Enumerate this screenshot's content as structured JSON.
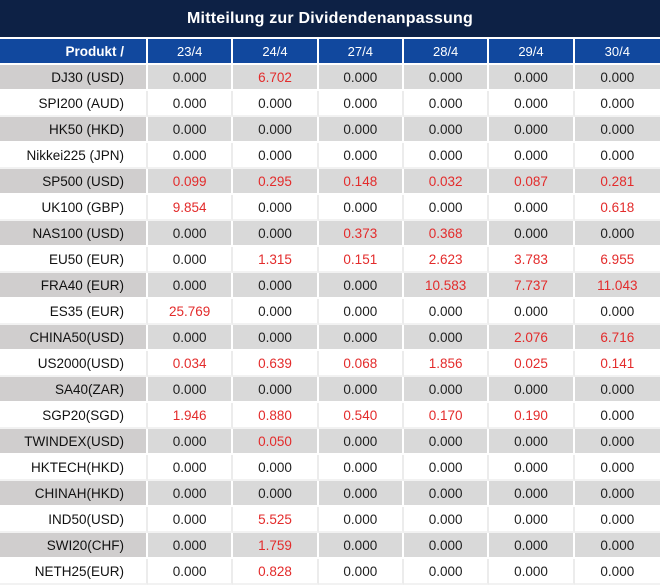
{
  "title": "Mitteilung zur Dividendenanpassung",
  "colors": {
    "title_bar_bg": "#0d2145",
    "header_bg": "#11489e",
    "header_text": "#ffffff",
    "row_gray": "#d9d9d9",
    "product_gray": "#d0cece",
    "row_white": "#ffffff",
    "value_zero": "#1f1f1f",
    "value_nonzero": "#e32b2b"
  },
  "table": {
    "product_header": "Produkt /",
    "date_columns": [
      "23/4",
      "24/4",
      "27/4",
      "28/4",
      "29/4",
      "30/4"
    ],
    "rows": [
      {
        "product": "DJ30 (USD)",
        "values": [
          "0.000",
          "6.702",
          "0.000",
          "0.000",
          "0.000",
          "0.000"
        ]
      },
      {
        "product": "SPI200 (AUD)",
        "values": [
          "0.000",
          "0.000",
          "0.000",
          "0.000",
          "0.000",
          "0.000"
        ]
      },
      {
        "product": "HK50 (HKD)",
        "values": [
          "0.000",
          "0.000",
          "0.000",
          "0.000",
          "0.000",
          "0.000"
        ]
      },
      {
        "product": "Nikkei225 (JPN)",
        "values": [
          "0.000",
          "0.000",
          "0.000",
          "0.000",
          "0.000",
          "0.000"
        ]
      },
      {
        "product": "SP500 (USD)",
        "values": [
          "0.099",
          "0.295",
          "0.148",
          "0.032",
          "0.087",
          "0.281"
        ]
      },
      {
        "product": "UK100 (GBP)",
        "values": [
          "9.854",
          "0.000",
          "0.000",
          "0.000",
          "0.000",
          "0.618"
        ]
      },
      {
        "product": "NAS100 (USD)",
        "values": [
          "0.000",
          "0.000",
          "0.373",
          "0.368",
          "0.000",
          "0.000"
        ]
      },
      {
        "product": "EU50 (EUR)",
        "values": [
          "0.000",
          "1.315",
          "0.151",
          "2.623",
          "3.783",
          "6.955"
        ]
      },
      {
        "product": "FRA40 (EUR)",
        "values": [
          "0.000",
          "0.000",
          "0.000",
          "10.583",
          "7.737",
          "11.043"
        ]
      },
      {
        "product": "ES35 (EUR)",
        "values": [
          "25.769",
          "0.000",
          "0.000",
          "0.000",
          "0.000",
          "0.000"
        ]
      },
      {
        "product": "CHINA50(USD)",
        "values": [
          "0.000",
          "0.000",
          "0.000",
          "0.000",
          "2.076",
          "6.716"
        ]
      },
      {
        "product": "US2000(USD)",
        "values": [
          "0.034",
          "0.639",
          "0.068",
          "1.856",
          "0.025",
          "0.141"
        ]
      },
      {
        "product": "SA40(ZAR)",
        "values": [
          "0.000",
          "0.000",
          "0.000",
          "0.000",
          "0.000",
          "0.000"
        ]
      },
      {
        "product": "SGP20(SGD)",
        "values": [
          "1.946",
          "0.880",
          "0.540",
          "0.170",
          "0.190",
          "0.000"
        ]
      },
      {
        "product": "TWINDEX(USD)",
        "values": [
          "0.000",
          "0.050",
          "0.000",
          "0.000",
          "0.000",
          "0.000"
        ]
      },
      {
        "product": "HKTECH(HKD)",
        "values": [
          "0.000",
          "0.000",
          "0.000",
          "0.000",
          "0.000",
          "0.000"
        ]
      },
      {
        "product": "CHINAH(HKD)",
        "values": [
          "0.000",
          "0.000",
          "0.000",
          "0.000",
          "0.000",
          "0.000"
        ]
      },
      {
        "product": "IND50(USD)",
        "values": [
          "0.000",
          "5.525",
          "0.000",
          "0.000",
          "0.000",
          "0.000"
        ]
      },
      {
        "product": "SWI20(CHF)",
        "values": [
          "0.000",
          "1.759",
          "0.000",
          "0.000",
          "0.000",
          "0.000"
        ]
      },
      {
        "product": "NETH25(EUR)",
        "values": [
          "0.000",
          "0.828",
          "0.000",
          "0.000",
          "0.000",
          "0.000"
        ]
      }
    ]
  },
  "chart_data": {
    "type": "table",
    "title": "Mitteilung zur Dividendenanpassung",
    "columns": [
      "Produkt /",
      "23/4",
      "24/4",
      "27/4",
      "28/4",
      "29/4",
      "30/4"
    ],
    "categories": [
      "DJ30 (USD)",
      "SPI200 (AUD)",
      "HK50 (HKD)",
      "Nikkei225 (JPN)",
      "SP500 (USD)",
      "UK100 (GBP)",
      "NAS100 (USD)",
      "EU50 (EUR)",
      "FRA40 (EUR)",
      "ES35 (EUR)",
      "CHINA50(USD)",
      "US2000(USD)",
      "SA40(ZAR)",
      "SGP20(SGD)",
      "TWINDEX(USD)",
      "HKTECH(HKD)",
      "CHINAH(HKD)",
      "IND50(USD)",
      "SWI20(CHF)",
      "NETH25(EUR)"
    ],
    "series": [
      {
        "name": "23/4",
        "values": [
          0.0,
          0.0,
          0.0,
          0.0,
          0.099,
          9.854,
          0.0,
          0.0,
          0.0,
          25.769,
          0.0,
          0.034,
          0.0,
          1.946,
          0.0,
          0.0,
          0.0,
          0.0,
          0.0,
          0.0
        ]
      },
      {
        "name": "24/4",
        "values": [
          6.702,
          0.0,
          0.0,
          0.0,
          0.295,
          0.0,
          0.0,
          1.315,
          0.0,
          0.0,
          0.0,
          0.639,
          0.0,
          0.88,
          0.05,
          0.0,
          0.0,
          5.525,
          1.759,
          0.828
        ]
      },
      {
        "name": "27/4",
        "values": [
          0.0,
          0.0,
          0.0,
          0.0,
          0.148,
          0.0,
          0.373,
          0.151,
          0.0,
          0.0,
          0.0,
          0.068,
          0.0,
          0.54,
          0.0,
          0.0,
          0.0,
          0.0,
          0.0,
          0.0
        ]
      },
      {
        "name": "28/4",
        "values": [
          0.0,
          0.0,
          0.0,
          0.0,
          0.032,
          0.0,
          0.368,
          2.623,
          10.583,
          0.0,
          0.0,
          1.856,
          0.0,
          0.17,
          0.0,
          0.0,
          0.0,
          0.0,
          0.0,
          0.0
        ]
      },
      {
        "name": "29/4",
        "values": [
          0.0,
          0.0,
          0.0,
          0.0,
          0.087,
          0.0,
          0.0,
          3.783,
          7.737,
          0.0,
          2.076,
          0.025,
          0.0,
          0.19,
          0.0,
          0.0,
          0.0,
          0.0,
          0.0,
          0.0
        ]
      },
      {
        "name": "30/4",
        "values": [
          0.0,
          0.0,
          0.0,
          0.0,
          0.281,
          0.618,
          0.0,
          6.955,
          11.043,
          0.0,
          6.716,
          0.141,
          0.0,
          0.0,
          0.0,
          0.0,
          0.0,
          0.0,
          0.0,
          0.0
        ]
      }
    ],
    "value_format": "0.000",
    "nonzero_values_highlighted_red": true
  }
}
